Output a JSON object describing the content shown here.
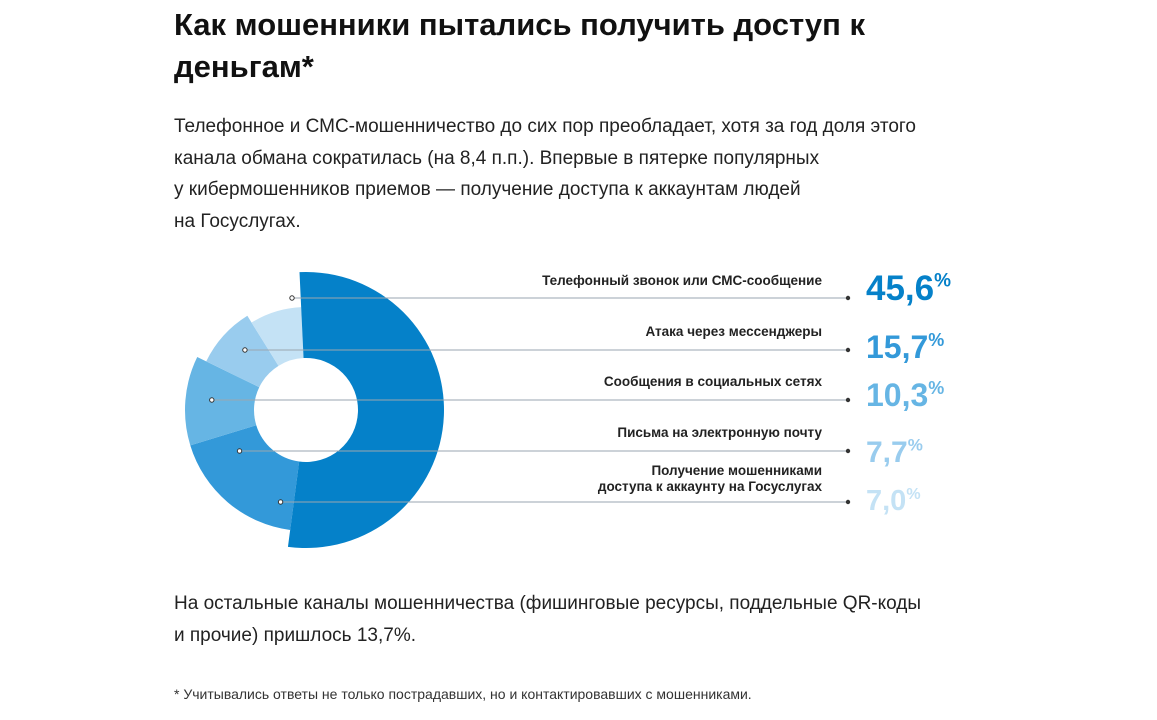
{
  "title": "Как мошенники пытались получить доступ к деньгам*",
  "lead_lines": [
    "Телефонное и СМС-мошенничество до сих пор преобладает, хотя за год доля этого",
    "канала обмана сократилась (на 8,4 п.п.). Впервые в пятерке популярных",
    "у кибермошенников приемов — получение доступа к аккаунтам людей",
    "на Госуслугах."
  ],
  "chart_data": {
    "type": "pie",
    "variant": "donut-rose",
    "categories": [
      "Телефонный звонок или СМС-сообщение",
      "Атака через мессенджеры",
      "Сообщения в социальных сетях",
      "Письма на электронную почту",
      "Получение мошенниками доступа к аккаунту на Госуслугах"
    ],
    "label_lines": [
      [
        "Телефонный звонок или СМС-сообщение"
      ],
      [
        "Атака через мессенджеры"
      ],
      [
        "Сообщения в социальных сетях"
      ],
      [
        "Письма на электронную почту"
      ],
      [
        "Получение мошенниками",
        "доступа к аккаунту на Госуслугах"
      ]
    ],
    "values": [
      45.6,
      15.7,
      10.3,
      7.7,
      7.0
    ],
    "value_labels": [
      "45,6",
      "15,7",
      "10,3",
      "7,7",
      "7,0"
    ],
    "unit": "%",
    "colors": [
      "#0581c9",
      "#3399d9",
      "#66b5e4",
      "#99ccee",
      "#c4e2f5"
    ]
  },
  "rest_lines": [
    "На остальные каналы мошенничества (фишинговые ресурсы, поддельные QR-коды",
    "и прочие) пришлось 13,7%."
  ],
  "footnote": "* Учитывались ответы не только пострадавших, но и контактировавших с мошенниками."
}
